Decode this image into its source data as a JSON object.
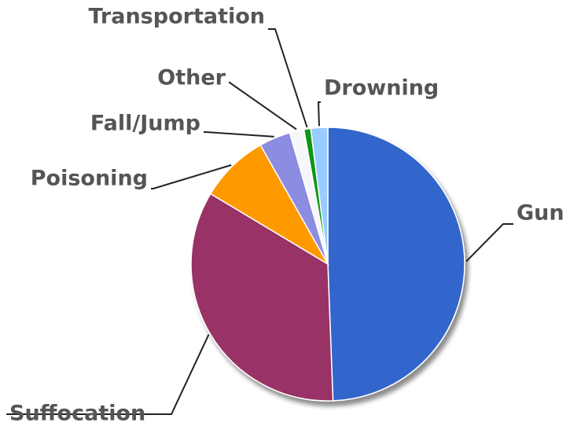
{
  "chart_data": {
    "type": "pie",
    "categories": [
      "Gun",
      "Suffocation",
      "Poisoning",
      "Fall/Jump",
      "Other",
      "Transportation",
      "Drowning"
    ],
    "values": [
      49.4,
      34.2,
      8.2,
      3.7,
      1.7,
      0.8,
      2.0
    ],
    "colors": [
      "#3366cc",
      "#993366",
      "#ff9900",
      "#8c8ce0",
      "#f7f7fb",
      "#109618",
      "#99ccff"
    ]
  }
}
